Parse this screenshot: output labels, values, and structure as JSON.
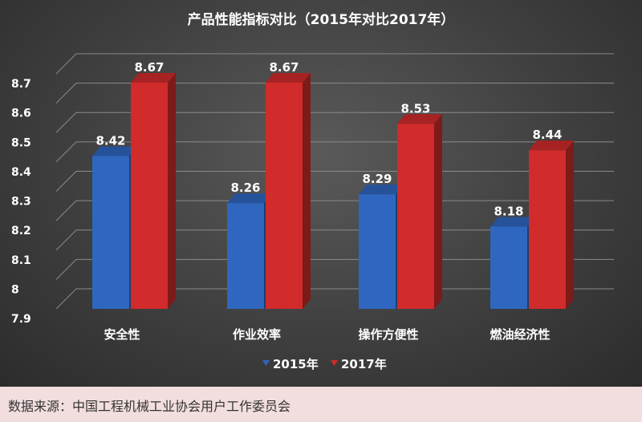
{
  "chart_data": {
    "type": "bar",
    "title": "产品性能指标对比（2015年对比2017年）",
    "categories": [
      "安全性",
      "作业效率",
      "操作方便性",
      "燃油经济性"
    ],
    "series": [
      {
        "name": "2015年",
        "values": [
          8.42,
          8.26,
          8.29,
          8.18
        ],
        "color": "#2f67c0"
      },
      {
        "name": "2017年",
        "values": [
          8.67,
          8.67,
          8.53,
          8.44
        ],
        "color": "#d12b2b"
      }
    ],
    "ylim": [
      7.9,
      8.7
    ],
    "yticks": [
      "7.9",
      "8",
      "8.1",
      "8.2",
      "8.3",
      "8.4",
      "8.5",
      "8.6",
      "8.7"
    ],
    "grid": true,
    "legend_position": "bottom",
    "three_d": true
  },
  "source": "数据来源：中国工程机械工业协会用户工作委员会"
}
